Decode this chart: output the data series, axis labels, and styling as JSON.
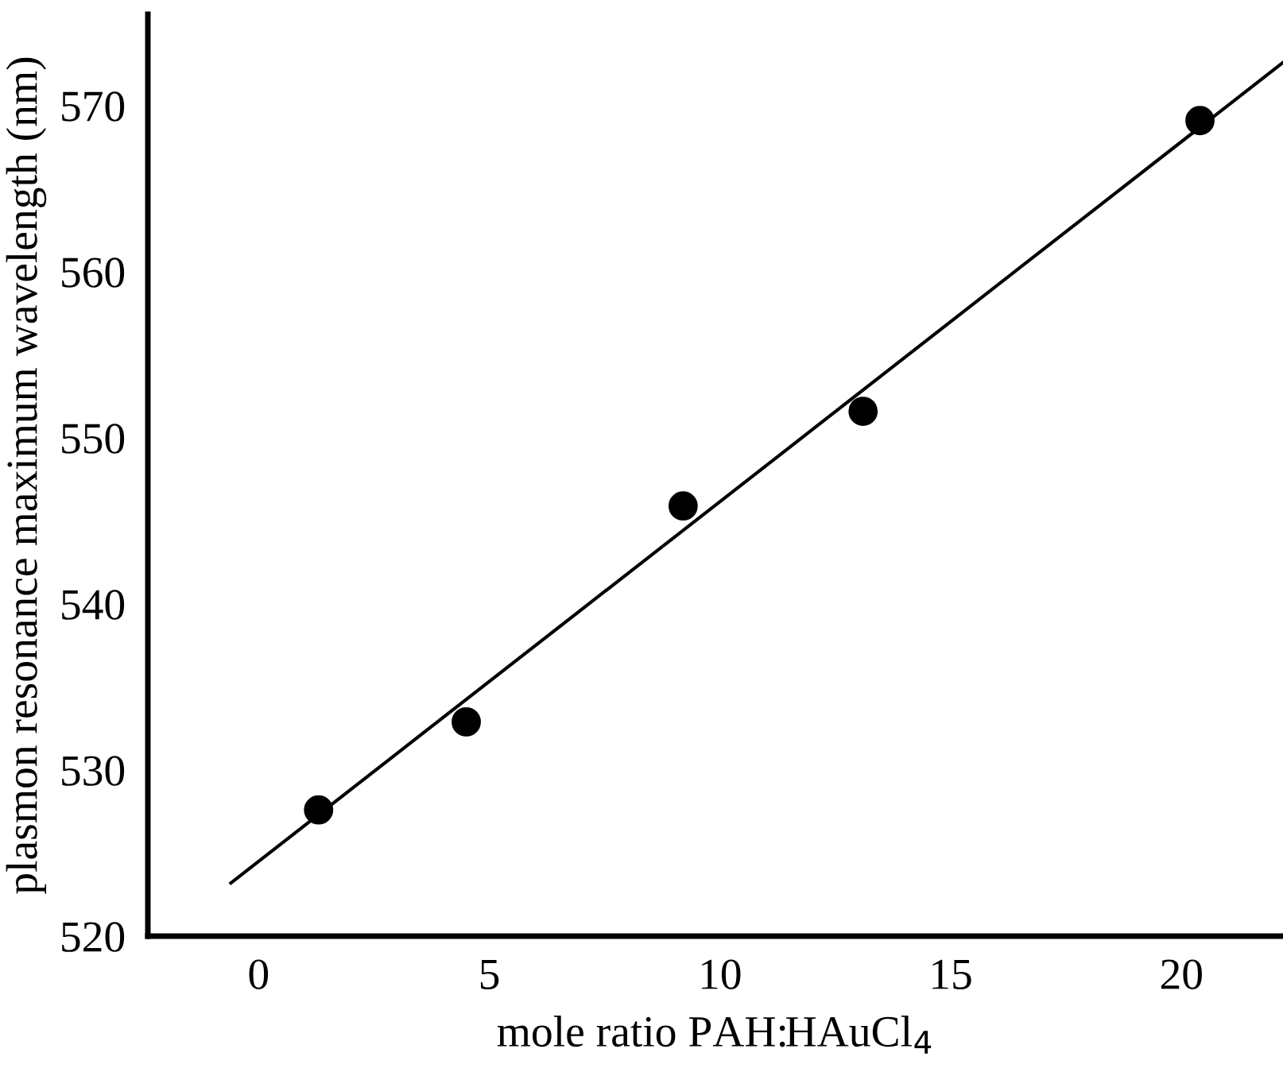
{
  "chart_data": {
    "type": "scatter",
    "xlabel": "mole ratio PAH:HAuCl$_{4}$",
    "ylabel": "plasmon resonance maximum wavelength (nm)",
    "series": [
      {
        "color": "#000000",
        "marker": "circle",
        "x": [
          1.3,
          4.5,
          9.2,
          13.1,
          20.4
        ],
        "values": [
          527.6,
          532.9,
          545.9,
          551.6,
          569.1
        ]
      },
      {
        "type": "line",
        "color": "#000000",
        "marker": "none",
        "line_style": "solid",
        "x": [
          -0.6,
          22.2
        ],
        "values": [
          523.2,
          572.6
        ]
      }
    ],
    "xlim": [
      -2.4,
      22.2
    ],
    "ylim": [
      520,
      575.5
    ],
    "xticks": [
      0,
      5,
      10,
      15,
      20
    ],
    "yticks": [
      520,
      530,
      540,
      550,
      560,
      570
    ],
    "grid": false,
    "legend": false
  }
}
